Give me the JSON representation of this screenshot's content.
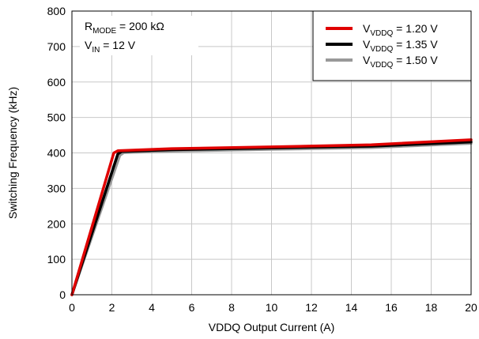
{
  "chart_data": {
    "type": "line",
    "title": "",
    "xlabel": "VDDQ Output Current (A)",
    "ylabel": "Switching Frequency (kHz)",
    "xlim": [
      0,
      20
    ],
    "ylim": [
      0,
      800
    ],
    "x_ticks": [
      0,
      2,
      4,
      6,
      8,
      10,
      12,
      14,
      16,
      18,
      20
    ],
    "y_ticks": [
      0,
      100,
      200,
      300,
      400,
      500,
      600,
      700,
      800
    ],
    "grid": true,
    "legend_position": "top-right",
    "annotation": {
      "line1_main": "R",
      "line1_sub": "MODE",
      "line1_rest": " = 200 kΩ",
      "line2_main": "V",
      "line2_sub": "IN",
      "line2_rest": " = 12 V"
    },
    "series": [
      {
        "name_main": "V",
        "name_sub": "VDDQ",
        "name_rest": " = 1.20 V",
        "color": "#e00000",
        "x": [
          0,
          2.1,
          2.3,
          5,
          10,
          15,
          20
        ],
        "y": [
          0,
          400,
          406,
          412,
          417,
          423,
          437
        ]
      },
      {
        "name_main": "V",
        "name_sub": "VDDQ",
        "name_rest": " = 1.35 V",
        "color": "#000000",
        "x": [
          0,
          2.3,
          2.5,
          5,
          10,
          15,
          20
        ],
        "y": [
          0,
          397,
          404,
          409,
          414,
          419,
          431
        ]
      },
      {
        "name_main": "V",
        "name_sub": "VDDQ",
        "name_rest": " = 1.50 V",
        "color": "#999999",
        "x": [
          0,
          2.4,
          2.6,
          5,
          10,
          15,
          20
        ],
        "y": [
          0,
          393,
          401,
          405,
          410,
          415,
          427
        ]
      }
    ]
  }
}
